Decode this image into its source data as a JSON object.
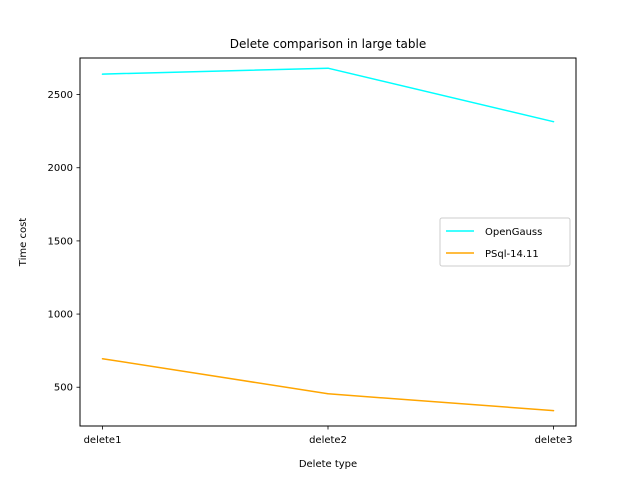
{
  "chart_data": {
    "type": "line",
    "title": "Delete comparison in large table",
    "xlabel": "Delete type",
    "ylabel": "Time cost",
    "categories": [
      "delete1",
      "delete2",
      "delete3"
    ],
    "series": [
      {
        "name": "OpenGauss",
        "color": "#00ffff",
        "values": [
          2640,
          2680,
          2315
        ]
      },
      {
        "name": "PSql-14.11",
        "color": "#ffa500",
        "values": [
          695,
          455,
          340
        ]
      }
    ],
    "ylim": [
      235,
      2750
    ],
    "yticks": [
      500,
      1000,
      1500,
      2000,
      2500
    ],
    "grid": false,
    "legend_position": "center-right"
  }
}
